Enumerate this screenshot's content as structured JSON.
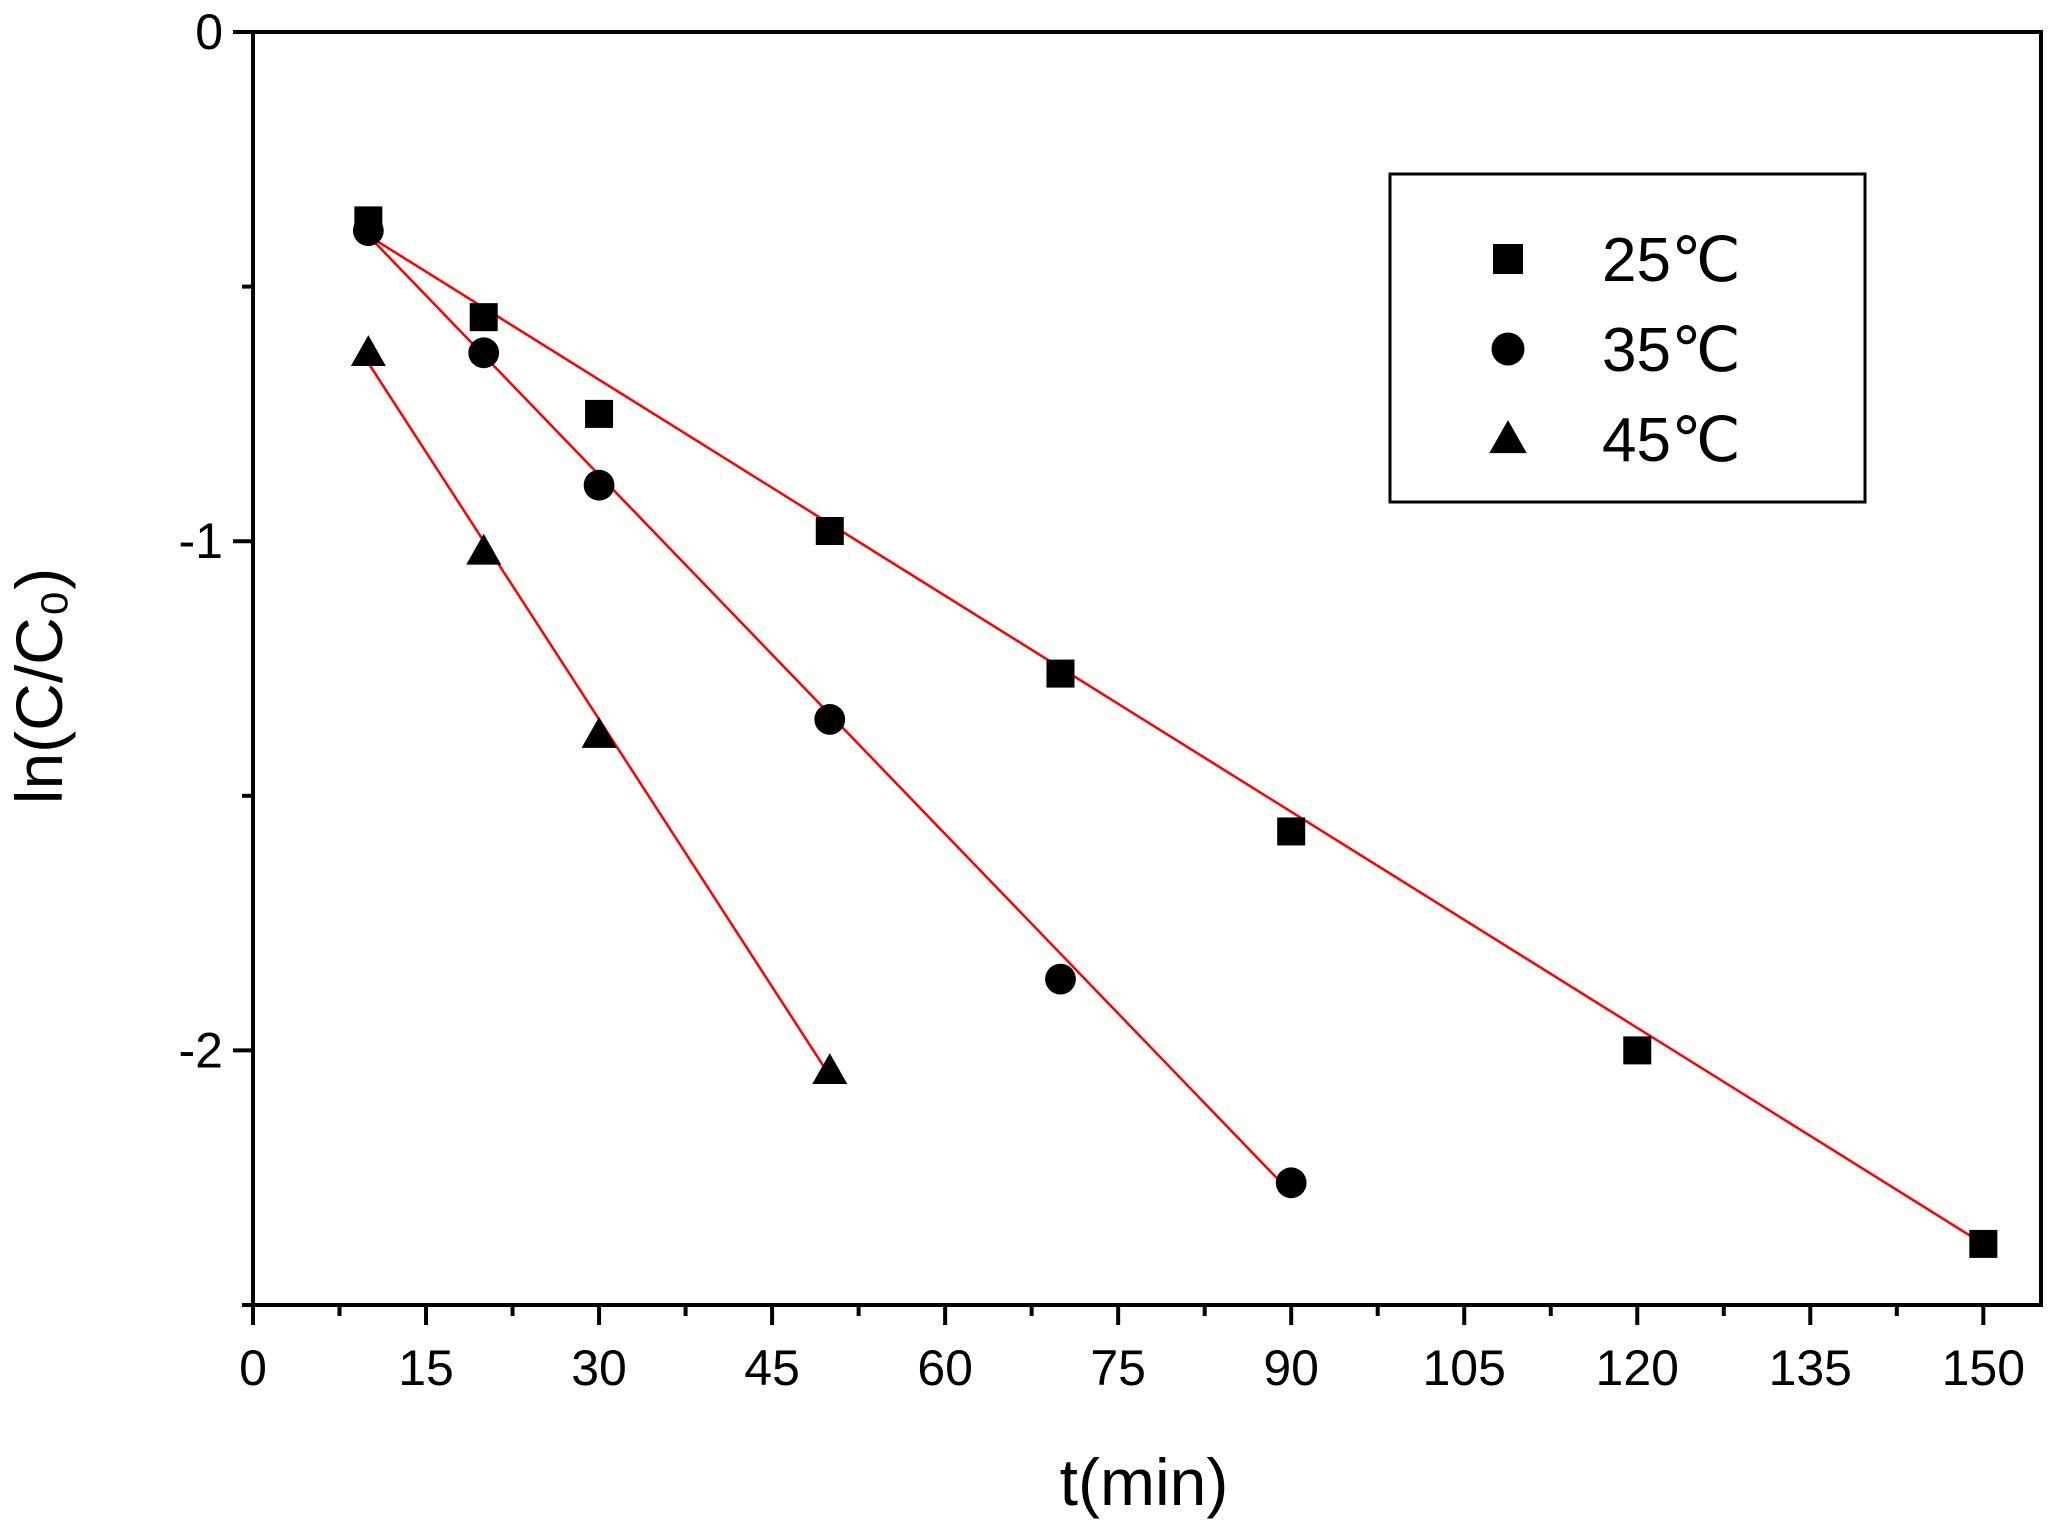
{
  "chart_data": {
    "type": "scatter",
    "title": "",
    "xlabel": "t(min)",
    "ylabel": "ln(C/C₀)",
    "xlim": [
      0,
      155
    ],
    "ylim": [
      -2.5,
      0
    ],
    "x_ticks": [
      "0",
      "15",
      "30",
      "45",
      "60",
      "75",
      "90",
      "105",
      "120",
      "135",
      "150"
    ],
    "y_ticks": [
      "0",
      "-1",
      "-2"
    ],
    "grid": false,
    "legend_position": "top-right",
    "fit_line_color": "#ff0000",
    "marker_color": "#000000",
    "series": [
      {
        "name": "25℃",
        "marker": "square",
        "x": [
          10,
          20,
          30,
          50,
          70,
          90,
          120,
          150
        ],
        "y": [
          -0.37,
          -0.56,
          -0.75,
          -0.98,
          -1.26,
          -1.57,
          -2.0,
          -2.38
        ],
        "fit": {
          "x": [
            10,
            150
          ],
          "y": [
            -0.4,
            -2.38
          ]
        }
      },
      {
        "name": "35℃",
        "marker": "circle",
        "x": [
          10,
          20,
          30,
          50,
          70,
          90
        ],
        "y": [
          -0.39,
          -0.63,
          -0.89,
          -1.35,
          -1.86,
          -2.26
        ],
        "fit": {
          "x": [
            10,
            90
          ],
          "y": [
            -0.4,
            -2.28
          ]
        }
      },
      {
        "name": "45℃",
        "marker": "triangle",
        "x": [
          10,
          20,
          30,
          50
        ],
        "y": [
          -0.63,
          -1.02,
          -1.38,
          -2.04
        ],
        "fit": {
          "x": [
            10,
            50
          ],
          "y": [
            -0.65,
            -2.05
          ]
        }
      }
    ]
  }
}
